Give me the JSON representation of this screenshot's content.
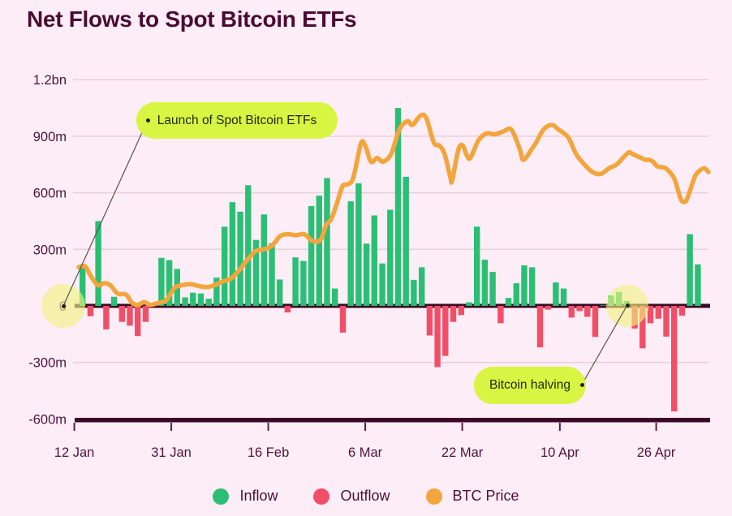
{
  "title": "Net Flows to Spot Bitcoin ETFs",
  "legend": {
    "items": [
      {
        "label": "Inflow",
        "color": "#2abf74"
      },
      {
        "label": "Outflow",
        "color": "#f14f68"
      },
      {
        "label": "BTC Price",
        "color": "#f3a53d"
      }
    ]
  },
  "colors": {
    "background": "#fcedf6",
    "title_text": "#4a0b33",
    "axis_text": "#51123a",
    "gridline": "#e8cfdc",
    "zero_axis_line": "#3d0827",
    "inflow": "#2abf74",
    "outflow": "#f14f68",
    "btc_price": "#f3a53d",
    "annotation_pill": "#d9f544",
    "annotation_text": "#1d280c",
    "highlight_circle": "#f1f47e",
    "connector_line": "#55544c"
  },
  "chart_data": {
    "type": "bar",
    "title": "Net Flows to Spot Bitcoin ETFs",
    "y_axis": {
      "ticks": [
        {
          "label": "1.2bn",
          "value": 1200
        },
        {
          "label": "900m",
          "value": 900
        },
        {
          "label": "600m",
          "value": 600
        },
        {
          "label": "300m",
          "value": 300
        },
        {
          "label": "0",
          "value": 0
        },
        {
          "label": "-300m",
          "value": -300
        },
        {
          "label": "-600m",
          "value": -600
        }
      ],
      "range_m": [
        -600,
        1200
      ]
    },
    "x_axis": {
      "ticks": [
        {
          "label": "12 Jan",
          "pos": -0.007
        },
        {
          "label": "31 Jan",
          "pos": 0.147
        },
        {
          "label": "16 Feb",
          "pos": 0.301
        },
        {
          "label": "6 Mar",
          "pos": 0.455
        },
        {
          "label": "22 Mar",
          "pos": 0.609
        },
        {
          "label": "10 Apr",
          "pos": 0.764
        },
        {
          "label": "26 Apr",
          "pos": 0.917
        }
      ]
    },
    "bars": {
      "name": "Daily net flow (millions USD)",
      "values_m": [
        210,
        -55,
        450,
        -125,
        48,
        -85,
        -105,
        -160,
        -85,
        4,
        255,
        243,
        196,
        45,
        70,
        66,
        38,
        150,
        420,
        550,
        500,
        640,
        350,
        485,
        332,
        140,
        -35,
        257,
        238,
        530,
        585,
        678,
        92,
        -142,
        555,
        650,
        330,
        480,
        225,
        510,
        1050,
        685,
        138,
        205,
        -157,
        -325,
        -265,
        -85,
        -49,
        19,
        420,
        245,
        180,
        -92,
        42,
        120,
        215,
        205,
        -220,
        -20,
        124,
        92,
        -62,
        -28,
        -58,
        -165,
        3,
        55,
        74,
        27,
        -120,
        -225,
        -92,
        -68,
        -163,
        -560,
        -52,
        380,
        220
      ]
    },
    "price_line": {
      "name": "BTC Price",
      "points_frac_value": [
        [
          0.0,
          205
        ],
        [
          0.01,
          210
        ],
        [
          0.019,
          160
        ],
        [
          0.03,
          110
        ],
        [
          0.04,
          120
        ],
        [
          0.05,
          110
        ],
        [
          0.062,
          65
        ],
        [
          0.075,
          60
        ],
        [
          0.085,
          15
        ],
        [
          0.094,
          5
        ],
        [
          0.104,
          20
        ],
        [
          0.113,
          5
        ],
        [
          0.126,
          15
        ],
        [
          0.139,
          30
        ],
        [
          0.152,
          95
        ],
        [
          0.165,
          110
        ],
        [
          0.178,
          115
        ],
        [
          0.191,
          105
        ],
        [
          0.204,
          100
        ],
        [
          0.216,
          110
        ],
        [
          0.229,
          130
        ],
        [
          0.242,
          145
        ],
        [
          0.255,
          190
        ],
        [
          0.268,
          245
        ],
        [
          0.281,
          290
        ],
        [
          0.294,
          300
        ],
        [
          0.307,
          320
        ],
        [
          0.32,
          370
        ],
        [
          0.332,
          380
        ],
        [
          0.345,
          375
        ],
        [
          0.358,
          380
        ],
        [
          0.371,
          345
        ],
        [
          0.384,
          350
        ],
        [
          0.393,
          430
        ],
        [
          0.401,
          460
        ],
        [
          0.41,
          545
        ],
        [
          0.419,
          635
        ],
        [
          0.427,
          645
        ],
        [
          0.436,
          680
        ],
        [
          0.448,
          860
        ],
        [
          0.455,
          850
        ],
        [
          0.464,
          765
        ],
        [
          0.474,
          785
        ],
        [
          0.483,
          765
        ],
        [
          0.496,
          805
        ],
        [
          0.509,
          935
        ],
        [
          0.522,
          980
        ],
        [
          0.53,
          960
        ],
        [
          0.543,
          1010
        ],
        [
          0.552,
          995
        ],
        [
          0.564,
          865
        ],
        [
          0.573,
          850
        ],
        [
          0.581,
          805
        ],
        [
          0.59,
          685
        ],
        [
          0.593,
          665
        ],
        [
          0.603,
          830
        ],
        [
          0.61,
          850
        ],
        [
          0.616,
          800
        ],
        [
          0.622,
          785
        ],
        [
          0.635,
          880
        ],
        [
          0.648,
          915
        ],
        [
          0.661,
          910
        ],
        [
          0.674,
          925
        ],
        [
          0.687,
          935
        ],
        [
          0.7,
          835
        ],
        [
          0.706,
          775
        ],
        [
          0.719,
          830
        ],
        [
          0.726,
          865
        ],
        [
          0.738,
          935
        ],
        [
          0.751,
          960
        ],
        [
          0.762,
          935
        ],
        [
          0.777,
          895
        ],
        [
          0.79,
          805
        ],
        [
          0.803,
          750
        ],
        [
          0.816,
          710
        ],
        [
          0.829,
          700
        ],
        [
          0.842,
          730
        ],
        [
          0.854,
          750
        ],
        [
          0.867,
          795
        ],
        [
          0.874,
          815
        ],
        [
          0.88,
          805
        ],
        [
          0.893,
          785
        ],
        [
          0.9,
          775
        ],
        [
          0.906,
          775
        ],
        [
          0.912,
          765
        ],
        [
          0.919,
          740
        ],
        [
          0.932,
          730
        ],
        [
          0.945,
          680
        ],
        [
          0.951,
          620
        ],
        [
          0.957,
          560
        ],
        [
          0.964,
          555
        ],
        [
          0.97,
          605
        ],
        [
          0.979,
          690
        ],
        [
          0.987,
          720
        ],
        [
          0.994,
          730
        ],
        [
          1.0,
          710
        ]
      ]
    },
    "annotations": [
      {
        "label": "Launch of Spot Bitcoin ETFs",
        "anchor": {
          "x_frac": -0.0245,
          "value": 0
        }
      },
      {
        "label": "Bitcoin halving",
        "anchor": {
          "x_frac": 0.8711,
          "value": 0
        }
      }
    ]
  }
}
